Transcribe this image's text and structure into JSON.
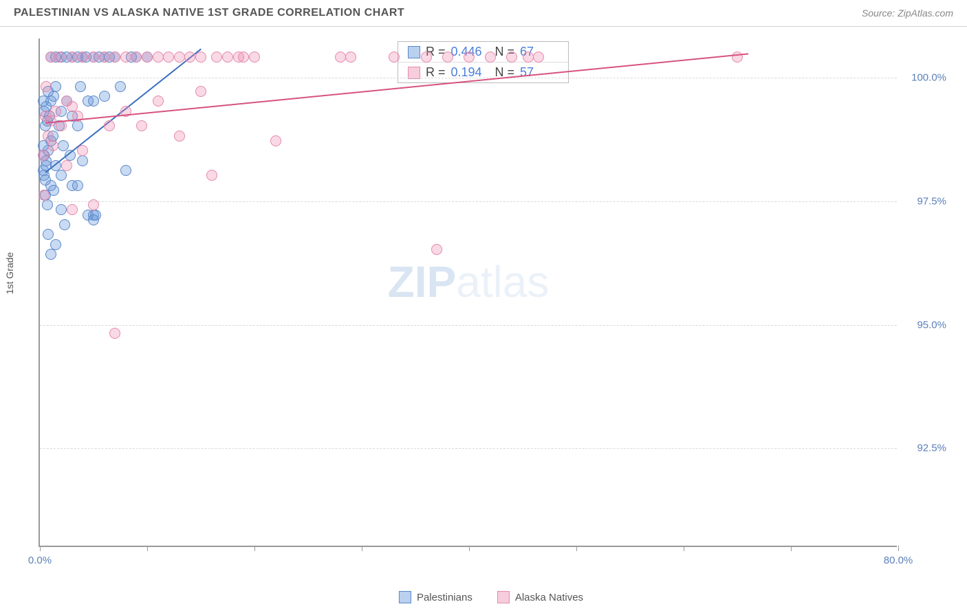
{
  "header": {
    "title": "PALESTINIAN VS ALASKA NATIVE 1ST GRADE CORRELATION CHART",
    "source": "Source: ZipAtlas.com"
  },
  "chart": {
    "type": "scatter",
    "y_axis_label": "1st Grade",
    "x_range": [
      0,
      80
    ],
    "y_range": [
      90.5,
      100.8
    ],
    "x_ticks": [
      0,
      10,
      20,
      30,
      40,
      50,
      60,
      70,
      80
    ],
    "x_tick_labels": {
      "0": "0.0%",
      "80": "80.0%"
    },
    "y_gridlines": [
      92.5,
      95.0,
      97.5,
      100.0
    ],
    "y_tick_labels": [
      "92.5%",
      "95.0%",
      "97.5%",
      "100.0%"
    ],
    "background_color": "#ffffff",
    "grid_color": "#d8d8d8",
    "axis_color": "#999999",
    "tick_label_color": "#5b7fb8",
    "marker_radius": 8,
    "series": [
      {
        "name": "Palestinians",
        "fill_color": "rgba(100,150,220,0.35)",
        "stroke_color": "#5b88c8",
        "line_color": "#3a6fc0",
        "R": "0.446",
        "N": "67",
        "trend": {
          "x1": 0.5,
          "y1": 98.1,
          "x2": 15,
          "y2": 100.6
        },
        "points": [
          [
            0.3,
            98.1
          ],
          [
            0.4,
            98.0
          ],
          [
            0.5,
            97.9
          ],
          [
            0.6,
            98.3
          ],
          [
            0.8,
            98.5
          ],
          [
            0.5,
            99.0
          ],
          [
            0.7,
            99.1
          ],
          [
            0.9,
            99.2
          ],
          [
            1.0,
            98.7
          ],
          [
            1.2,
            98.8
          ],
          [
            1.0,
            99.5
          ],
          [
            1.3,
            99.6
          ],
          [
            1.5,
            99.8
          ],
          [
            0.4,
            99.3
          ],
          [
            0.6,
            99.4
          ],
          [
            0.8,
            99.7
          ],
          [
            1.8,
            99.0
          ],
          [
            2.0,
            99.3
          ],
          [
            2.2,
            98.6
          ],
          [
            2.5,
            99.5
          ],
          [
            2.0,
            100.4
          ],
          [
            2.5,
            100.4
          ],
          [
            3.0,
            100.4
          ],
          [
            3.5,
            100.4
          ],
          [
            4.0,
            100.4
          ],
          [
            4.3,
            100.4
          ],
          [
            5.0,
            100.4
          ],
          [
            5.5,
            100.4
          ],
          [
            6.0,
            100.4
          ],
          [
            6.5,
            100.4
          ],
          [
            7.0,
            100.4
          ],
          [
            1.5,
            100.4
          ],
          [
            1.0,
            100.4
          ],
          [
            3.0,
            99.2
          ],
          [
            3.5,
            99.0
          ],
          [
            2.8,
            98.4
          ],
          [
            1.5,
            98.2
          ],
          [
            2.0,
            98.0
          ],
          [
            1.0,
            97.8
          ],
          [
            1.3,
            97.7
          ],
          [
            5.0,
            99.5
          ],
          [
            6.0,
            99.6
          ],
          [
            3.0,
            97.8
          ],
          [
            3.5,
            97.8
          ],
          [
            4.0,
            98.3
          ],
          [
            0.5,
            97.6
          ],
          [
            0.7,
            97.4
          ],
          [
            2.0,
            97.3
          ],
          [
            2.3,
            97.0
          ],
          [
            0.8,
            96.8
          ],
          [
            1.5,
            96.6
          ],
          [
            4.5,
            97.2
          ],
          [
            5.0,
            97.2
          ],
          [
            5.2,
            97.2
          ],
          [
            5.0,
            97.1
          ],
          [
            1.0,
            96.4
          ],
          [
            8.0,
            98.1
          ],
          [
            9.0,
            100.4
          ],
          [
            10.0,
            100.4
          ],
          [
            8.5,
            100.4
          ],
          [
            7.5,
            99.8
          ],
          [
            0.3,
            98.6
          ],
          [
            0.4,
            98.4
          ],
          [
            0.6,
            98.2
          ],
          [
            0.3,
            99.5
          ],
          [
            3.8,
            99.8
          ],
          [
            4.5,
            99.5
          ]
        ]
      },
      {
        "name": "Alaska Natives",
        "fill_color": "rgba(235,130,170,0.3)",
        "stroke_color": "#e589ab",
        "line_color": "#d6527f",
        "R": "0.194",
        "N": "57",
        "trend": {
          "x1": 0.5,
          "y1": 99.1,
          "x2": 66,
          "y2": 100.5
        },
        "points": [
          [
            0.5,
            99.2
          ],
          [
            1.0,
            99.1
          ],
          [
            1.5,
            99.3
          ],
          [
            2.0,
            99.0
          ],
          [
            0.8,
            98.8
          ],
          [
            1.2,
            98.6
          ],
          [
            2.5,
            99.5
          ],
          [
            3.0,
            99.4
          ],
          [
            3.0,
            100.4
          ],
          [
            3.5,
            99.2
          ],
          [
            4.0,
            100.4
          ],
          [
            5.0,
            100.4
          ],
          [
            6.0,
            100.4
          ],
          [
            7.0,
            100.4
          ],
          [
            8.0,
            100.4
          ],
          [
            9.0,
            100.4
          ],
          [
            10.0,
            100.4
          ],
          [
            11.0,
            100.4
          ],
          [
            12.0,
            100.4
          ],
          [
            13.0,
            100.4
          ],
          [
            14.0,
            100.4
          ],
          [
            15.0,
            100.4
          ],
          [
            16.5,
            100.4
          ],
          [
            17.5,
            100.4
          ],
          [
            18.5,
            100.4
          ],
          [
            20.0,
            100.4
          ],
          [
            28.0,
            100.4
          ],
          [
            29.0,
            100.4
          ],
          [
            33.0,
            100.4
          ],
          [
            36.0,
            100.4
          ],
          [
            38.0,
            100.4
          ],
          [
            40.0,
            100.4
          ],
          [
            42.0,
            100.4
          ],
          [
            44.0,
            100.4
          ],
          [
            45.5,
            100.4
          ],
          [
            46.5,
            100.4
          ],
          [
            65.0,
            100.4
          ],
          [
            8.0,
            99.3
          ],
          [
            13.0,
            98.8
          ],
          [
            16.0,
            98.0
          ],
          [
            22.0,
            98.7
          ],
          [
            0.4,
            97.6
          ],
          [
            5.0,
            97.4
          ],
          [
            3.0,
            97.3
          ],
          [
            37.0,
            96.5
          ],
          [
            7.0,
            94.8
          ],
          [
            2.5,
            98.2
          ],
          [
            4.0,
            98.5
          ],
          [
            6.5,
            99.0
          ],
          [
            11.0,
            99.5
          ],
          [
            0.6,
            99.8
          ],
          [
            1.0,
            100.4
          ],
          [
            1.8,
            100.4
          ],
          [
            0.3,
            98.4
          ],
          [
            9.5,
            99.0
          ],
          [
            15.0,
            99.7
          ],
          [
            19.0,
            100.4
          ]
        ]
      }
    ],
    "stats_box": {
      "r_label": "R =",
      "n_label": "N ="
    },
    "legend_labels": [
      "Palestinians",
      "Alaska Natives"
    ],
    "watermark_bold": "ZIP",
    "watermark_light": "atlas"
  }
}
